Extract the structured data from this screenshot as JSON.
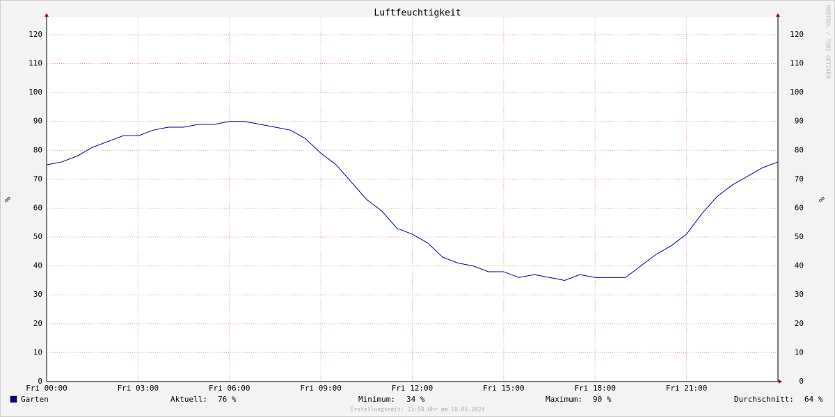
{
  "chart_data": {
    "type": "line",
    "title": "Luftfeuchtigkeit",
    "y_label": "%",
    "credit": "RRDTOOL / TOBI OETIKER",
    "footer": "Erstellungszeit: 23:58 Uhr am 10.05.2024",
    "x": [
      0,
      0.5,
      1,
      1.5,
      2,
      2.5,
      3,
      3.5,
      4,
      4.5,
      5,
      5.5,
      6,
      6.5,
      7,
      7.5,
      8,
      8.5,
      9,
      9.5,
      10,
      10.5,
      11,
      11.5,
      12,
      12.5,
      13,
      13.5,
      14,
      14.5,
      15,
      15.5,
      16,
      16.5,
      17,
      17.5,
      18,
      18.5,
      19,
      19.5,
      20,
      20.5,
      21,
      21.5,
      22,
      22.5,
      23,
      23.5,
      24
    ],
    "xlim": [
      0,
      24
    ],
    "xticks": [
      {
        "value": 0,
        "label": "Fri 00:00"
      },
      {
        "value": 3,
        "label": "Fri 03:00"
      },
      {
        "value": 6,
        "label": "Fri 06:00"
      },
      {
        "value": 9,
        "label": "Fri 09:00"
      },
      {
        "value": 12,
        "label": "Fri 12:00"
      },
      {
        "value": 15,
        "label": "Fri 15:00"
      },
      {
        "value": 18,
        "label": "Fri 18:00"
      },
      {
        "value": 21,
        "label": "Fri 21:00"
      }
    ],
    "ylim": [
      0,
      126
    ],
    "yticks": [
      0,
      10,
      20,
      30,
      40,
      50,
      60,
      70,
      80,
      90,
      100,
      110,
      120
    ],
    "grid": true,
    "series": [
      {
        "name": "Garten",
        "color": "#00008b",
        "values": [
          75,
          76,
          78,
          81,
          83,
          85,
          85,
          87,
          88,
          88,
          89,
          89,
          90,
          90,
          89,
          88,
          87,
          84,
          79,
          75,
          69,
          63,
          59,
          53,
          51,
          48,
          43,
          41,
          40,
          38,
          38,
          36,
          37,
          36,
          35,
          37,
          36,
          36,
          36,
          40,
          44,
          47,
          51,
          58,
          64,
          68,
          71,
          74,
          76
        ]
      }
    ],
    "stats": [
      {
        "label": "Aktuell:",
        "text": "76 %"
      },
      {
        "label": "Minimum:",
        "text": "34 %"
      },
      {
        "label": "Maximum:",
        "text": "90 %"
      },
      {
        "label": "Durchschnitt:",
        "text": "64 %"
      }
    ]
  }
}
